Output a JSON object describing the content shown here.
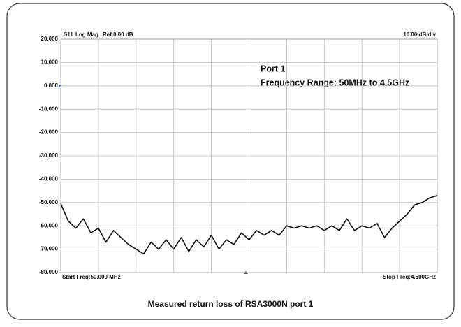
{
  "chart_data": {
    "type": "line",
    "header": [
      "S11",
      "Log Mag",
      "Ref 0.00 dB"
    ],
    "scale_label": "10.00 dB/div",
    "start_label": "Start Freq:50.000 MHz",
    "stop_label": "Stop Freq:4.500GHz",
    "annotations": [
      "Port 1",
      "Frequency Range: 50MHz to 4.5GHz"
    ],
    "caption": "Measured return loss of RSA3000N port 1",
    "ref_level": 0,
    "ref_color": "#1f4fbf",
    "grid": true,
    "xlim": [
      50,
      4500
    ],
    "ylim": [
      -80,
      20
    ],
    "yticks": [
      {
        "value": 20,
        "label": "20.000"
      },
      {
        "value": 10,
        "label": "10.000"
      },
      {
        "value": 0,
        "label": "0.000"
      },
      {
        "value": -10,
        "label": "-10.000"
      },
      {
        "value": -20,
        "label": "-20.000"
      },
      {
        "value": -30,
        "label": "-30.000"
      },
      {
        "value": -40,
        "label": "-40.000"
      },
      {
        "value": -50,
        "label": "-50.000"
      },
      {
        "value": -60,
        "label": "-60.000"
      },
      {
        "value": -70,
        "label": "-70.000"
      },
      {
        "value": -80,
        "label": "-80.000"
      }
    ],
    "x": [
      50,
      139,
      228,
      317,
      406,
      495,
      584,
      673,
      762,
      851,
      940,
      1029,
      1118,
      1207,
      1296,
      1385,
      1474,
      1563,
      1652,
      1741,
      1830,
      1919,
      2008,
      2097,
      2186,
      2275,
      2364,
      2453,
      2542,
      2631,
      2720,
      2809,
      2898,
      2987,
      3076,
      3165,
      3254,
      3343,
      3432,
      3521,
      3610,
      3699,
      3788,
      3877,
      3966,
      4055,
      4144,
      4233,
      4322,
      4411,
      4500
    ],
    "series": [
      {
        "color": "#111111",
        "values": [
          -50.5,
          -58,
          -61,
          -57,
          -63,
          -61,
          -67,
          -62,
          -65,
          -68,
          -70,
          -72,
          -67,
          -70,
          -66,
          -70,
          -65,
          -71,
          -66,
          -69,
          -64,
          -70,
          -66,
          -68,
          -63,
          -66,
          -62,
          -64,
          -62,
          -64,
          -60,
          -61,
          -60,
          -61,
          -60,
          -62,
          -60,
          -62,
          -57,
          -62,
          -60,
          -61,
          -59,
          -65,
          -61,
          -58,
          -55,
          -51,
          -50,
          -48,
          -47
        ]
      }
    ]
  }
}
